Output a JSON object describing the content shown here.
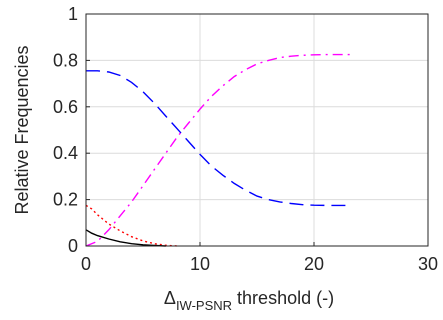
{
  "chart_data": {
    "type": "line",
    "title": "",
    "xlabel_main": "Δ",
    "xlabel_sub": "IW-PSNR",
    "xlabel_rest": " threshold (-)",
    "ylabel": "Relative Frequencies",
    "xlim": [
      0,
      30
    ],
    "ylim": [
      0,
      1
    ],
    "xticks": [
      0,
      10,
      20,
      30
    ],
    "yticks": [
      0,
      0.2,
      0.4,
      0.6,
      0.8,
      1
    ],
    "xtick_labels": [
      "0",
      "10",
      "20",
      "30"
    ],
    "ytick_labels": [
      "0",
      "0.2",
      "0.4",
      "0.6",
      "0.8",
      "1"
    ],
    "grid": true,
    "legend": "none",
    "series": [
      {
        "color": "#0000ff",
        "style": "dashed",
        "x": [
          0,
          1,
          2,
          3,
          4,
          5,
          6,
          7,
          8,
          9,
          10,
          11,
          12,
          13,
          14,
          15,
          16,
          17,
          18,
          19,
          20,
          21,
          22,
          23.3
        ],
        "y": [
          0.755,
          0.755,
          0.75,
          0.735,
          0.705,
          0.665,
          0.615,
          0.56,
          0.505,
          0.45,
          0.395,
          0.345,
          0.305,
          0.27,
          0.24,
          0.215,
          0.2,
          0.19,
          0.183,
          0.178,
          0.176,
          0.175,
          0.175,
          0.175
        ]
      },
      {
        "color": "#ff00ff",
        "style": "dashdot",
        "x": [
          0,
          1,
          2,
          3,
          4,
          5,
          6,
          7,
          8,
          9,
          10,
          11,
          12,
          13,
          14,
          15,
          16,
          17,
          18,
          19,
          20,
          21,
          22,
          23.3
        ],
        "y": [
          0.0,
          0.02,
          0.07,
          0.13,
          0.19,
          0.26,
          0.33,
          0.4,
          0.47,
          0.53,
          0.59,
          0.645,
          0.69,
          0.73,
          0.76,
          0.785,
          0.8,
          0.812,
          0.818,
          0.822,
          0.824,
          0.825,
          0.825,
          0.825
        ]
      },
      {
        "color": "#ff0000",
        "style": "dotted",
        "x": [
          0,
          0.5,
          1,
          2,
          3,
          4,
          5,
          6,
          7,
          8
        ],
        "y": [
          0.175,
          0.16,
          0.135,
          0.095,
          0.065,
          0.04,
          0.022,
          0.01,
          0.003,
          0.0
        ]
      },
      {
        "color": "#000000",
        "style": "solid",
        "x": [
          0,
          0.5,
          1,
          2,
          3,
          4,
          5,
          6,
          7
        ],
        "y": [
          0.07,
          0.055,
          0.045,
          0.03,
          0.018,
          0.01,
          0.005,
          0.002,
          0.0
        ]
      }
    ]
  }
}
